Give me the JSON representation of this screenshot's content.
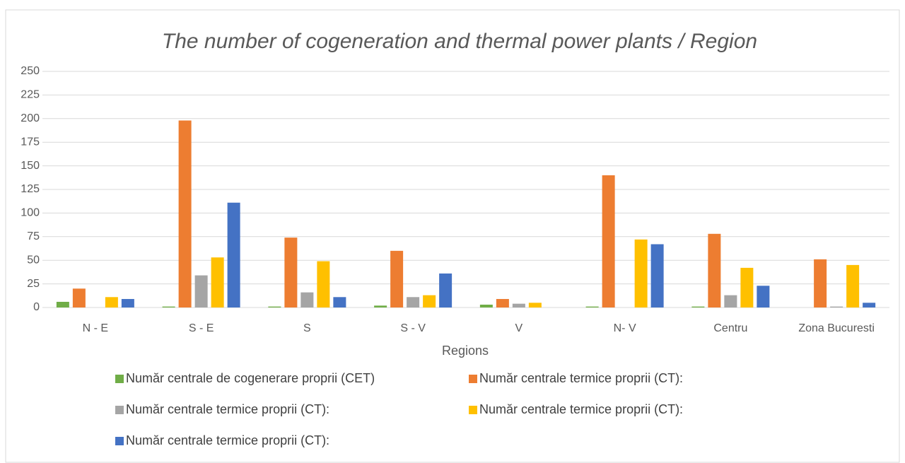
{
  "chart_data": {
    "type": "bar",
    "title": "The number of cogeneration and thermal power plants / Region",
    "x_label": "Regions",
    "categories": [
      "N - E",
      "S - E",
      "S",
      "S - V",
      "V",
      "N- V",
      "Centru",
      "Zona Bucuresti"
    ],
    "series": [
      {
        "name": "Număr centrale de cogenerare proprii (CET)",
        "color": "#70ad47",
        "values": [
          6,
          1,
          1,
          2,
          3,
          1,
          1,
          0
        ]
      },
      {
        "name": "Număr centrale termice proprii (CT):",
        "color": "#ed7d31",
        "values": [
          20,
          198,
          74,
          60,
          9,
          140,
          78,
          51
        ]
      },
      {
        "name": "Număr centrale termice proprii (CT):",
        "color": "#a5a5a5",
        "values": [
          0,
          34,
          16,
          11,
          4,
          0,
          13,
          1
        ]
      },
      {
        "name": "Număr centrale termice proprii (CT):",
        "color": "#ffc000",
        "values": [
          11,
          53,
          49,
          13,
          5,
          72,
          42,
          45
        ]
      },
      {
        "name": "Număr centrale termice proprii (CT):",
        "color": "#4472c4",
        "values": [
          9,
          111,
          11,
          36,
          0,
          67,
          23,
          5
        ]
      }
    ],
    "ylim": [
      0,
      250
    ],
    "yticks": [
      0,
      25,
      50,
      75,
      100,
      125,
      150,
      175,
      200,
      225,
      250
    ],
    "grid": true,
    "legend": "bottom"
  }
}
